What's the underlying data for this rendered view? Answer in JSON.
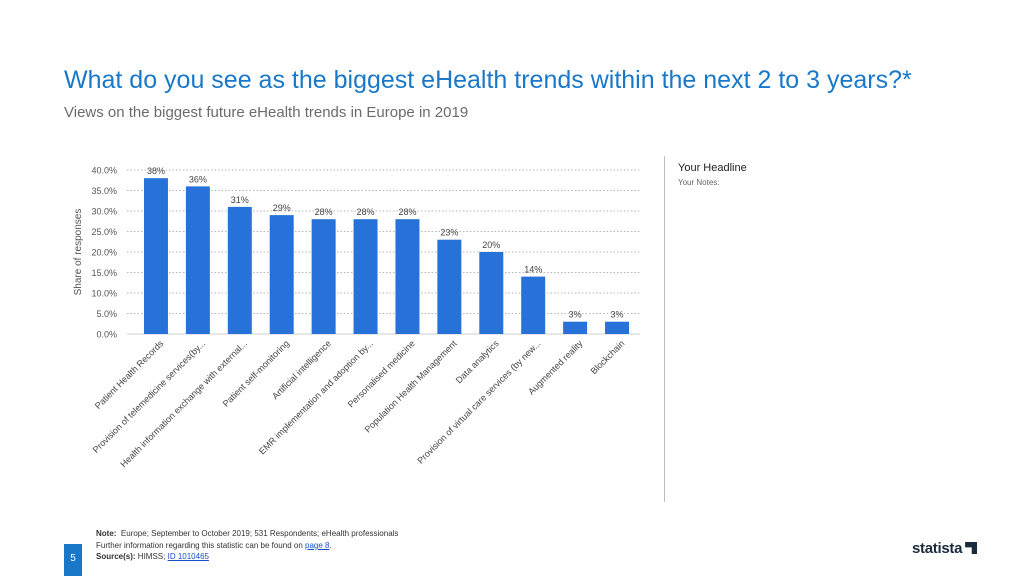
{
  "header": {
    "title": "What do you see as the biggest eHealth trends within the next 2 to 3 years?*",
    "subtitle": "Views on the biggest future eHealth trends in Europe in 2019"
  },
  "side_panel": {
    "headline": "Your Headline",
    "notes": "Your Notes:"
  },
  "footer": {
    "note_label": "Note:",
    "note_text": "Europe; September to October 2019; 531 Respondents; eHealth professionals",
    "further_info": "Further information regarding this statistic can be found on",
    "page_link": "page 8",
    "source_label": "Source(s):",
    "source_text": "HIMSS;",
    "source_id": "ID 1010465"
  },
  "page_number": "5",
  "brand": "statista",
  "colors": {
    "accent": "#1a78c9",
    "bar": "#2672d8"
  },
  "chart_data": {
    "type": "bar",
    "categories": [
      "Patient Health Records",
      "Provision of telemedicine services(by...",
      "Health information exchange with external...",
      "Patient self-monitoring",
      "Artificial intelligence",
      "EMR implementation and adoption by...",
      "Personalised medicine",
      "Population Health Management",
      "Data analytics",
      "Provision of virtual care services (by new...",
      "Augmented reality",
      "Blockchain"
    ],
    "values": [
      38,
      36,
      31,
      29,
      28,
      28,
      28,
      23,
      20,
      14,
      3,
      3
    ],
    "data_labels": [
      "38%",
      "36%",
      "31%",
      "29%",
      "28%",
      "28%",
      "28%",
      "23%",
      "20%",
      "14%",
      "3%",
      "3%"
    ],
    "y_ticks": [
      "0.0%",
      "5.0%",
      "10.0%",
      "15.0%",
      "20.0%",
      "25.0%",
      "30.0%",
      "35.0%",
      "40.0%"
    ],
    "ylabel": "Share of responses",
    "ylim": [
      0,
      40
    ],
    "grid": true
  }
}
